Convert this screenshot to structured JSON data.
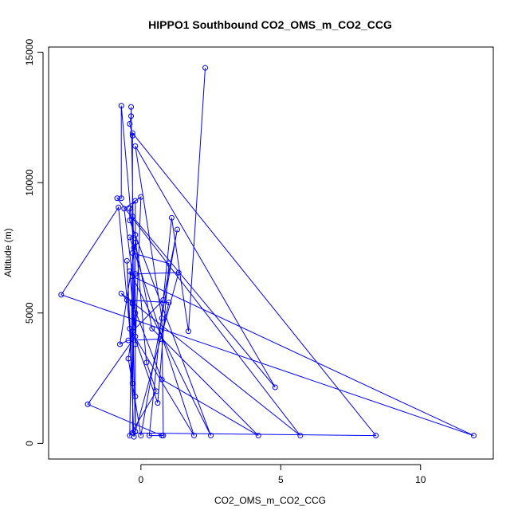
{
  "chart_data": {
    "type": "line",
    "title": "HIPPO1 Southbound CO2_OMS_m_CO2_CCG",
    "xlabel": "CO2_OMS_m_CO2_CCG",
    "ylabel": "Altitude (m)",
    "xlim": [
      -3.3,
      12.6
    ],
    "ylim": [
      -600,
      15200
    ],
    "xticks": [
      0,
      5,
      10
    ],
    "xtick_labels": [
      "0",
      "5",
      "10"
    ],
    "yticks": [
      0,
      5000,
      10000,
      15000
    ],
    "ytick_labels": [
      "0",
      "5000",
      "10000",
      "15000"
    ],
    "grid": false,
    "legend": "none",
    "colors": {
      "series": "#0000ff",
      "frame": "#000000",
      "background": "#ffffff"
    },
    "series": [
      {
        "marker": "open-circle",
        "points": [
          {
            "x": 2.3,
            "y": 14400
          },
          {
            "x": 1.7,
            "y": 4300
          },
          {
            "x": 1.1,
            "y": 8650
          },
          {
            "x": 0.3,
            "y": 300
          },
          {
            "x": 0.8,
            "y": 300
          },
          {
            "x": 0.75,
            "y": 4800
          },
          {
            "x": -0.2,
            "y": 11400
          },
          {
            "x": 4.8,
            "y": 2150
          },
          {
            "x": -0.3,
            "y": 8700
          },
          {
            "x": -0.3,
            "y": 11800
          },
          {
            "x": -0.4,
            "y": 12250
          },
          {
            "x": -0.35,
            "y": 12550
          },
          {
            "x": -0.35,
            "y": 12900
          },
          {
            "x": -0.2,
            "y": 3800
          },
          {
            "x": 0.0,
            "y": 9450
          },
          {
            "x": -0.6,
            "y": 9000
          },
          {
            "x": -0.3,
            "y": 6400
          },
          {
            "x": 11.9,
            "y": 300
          },
          {
            "x": -2.85,
            "y": 5700
          },
          {
            "x": -0.8,
            "y": 9050
          },
          {
            "x": -0.4,
            "y": 4400
          },
          {
            "x": 1.9,
            "y": 300
          },
          {
            "x": -0.4,
            "y": 7900
          },
          {
            "x": -0.2,
            "y": 8000
          },
          {
            "x": 0.2,
            "y": 3100
          },
          {
            "x": 0.55,
            "y": 2000
          },
          {
            "x": -0.4,
            "y": 300
          },
          {
            "x": -0.3,
            "y": 7300
          },
          {
            "x": 1.0,
            "y": 6900
          },
          {
            "x": 0.6,
            "y": 1550
          },
          {
            "x": -0.3,
            "y": 4300
          },
          {
            "x": 0.8,
            "y": 5500
          },
          {
            "x": 1.3,
            "y": 8200
          },
          {
            "x": 0.0,
            "y": 300
          },
          {
            "x": -0.45,
            "y": 3250
          },
          {
            "x": -0.2,
            "y": 5000
          },
          {
            "x": -0.2,
            "y": 6500
          },
          {
            "x": 1.35,
            "y": 6550
          },
          {
            "x": -0.25,
            "y": 250
          },
          {
            "x": -0.5,
            "y": 7000
          },
          {
            "x": -0.3,
            "y": 2300
          },
          {
            "x": -0.3,
            "y": 11900
          },
          {
            "x": 8.4,
            "y": 300
          },
          {
            "x": -0.3,
            "y": 400
          },
          {
            "x": -0.25,
            "y": 7500
          },
          {
            "x": -0.7,
            "y": 12950
          },
          {
            "x": -0.7,
            "y": 9400
          },
          {
            "x": -0.85,
            "y": 9400
          },
          {
            "x": 5.7,
            "y": 300
          },
          {
            "x": -0.7,
            "y": 5750
          },
          {
            "x": -0.5,
            "y": 5500
          },
          {
            "x": 1.0,
            "y": 5400
          },
          {
            "x": 0.7,
            "y": 4000
          },
          {
            "x": -0.45,
            "y": 3950
          },
          {
            "x": -0.75,
            "y": 3800
          },
          {
            "x": -0.2,
            "y": 7700
          },
          {
            "x": 0.4,
            "y": 4400
          },
          {
            "x": 4.2,
            "y": 300
          },
          {
            "x": 0.75,
            "y": 2450
          },
          {
            "x": -0.3,
            "y": 5350
          },
          {
            "x": -0.4,
            "y": 6600
          },
          {
            "x": 2.5,
            "y": 300
          },
          {
            "x": -0.4,
            "y": 8550
          },
          {
            "x": -0.4,
            "y": 9000
          },
          {
            "x": -0.2,
            "y": 9300
          },
          {
            "x": -0.2,
            "y": 1800
          },
          {
            "x": -0.2,
            "y": 450
          },
          {
            "x": -0.3,
            "y": 5400
          },
          {
            "x": -0.2,
            "y": 4100
          },
          {
            "x": -1.9,
            "y": 1500
          },
          {
            "x": 0.75,
            "y": 300
          }
        ]
      }
    ]
  }
}
